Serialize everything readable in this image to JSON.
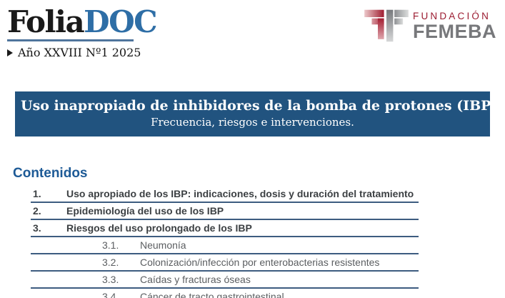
{
  "masthead": {
    "logo": {
      "part1": "Folia",
      "part2": "DOC"
    },
    "edition": "Año XXVIII Nº1 2025"
  },
  "partner_logo": {
    "line1": "FUNDACIÓN",
    "line2": "FEMEBA"
  },
  "banner": {
    "title": "Uso inapropiado de inhibidores de la bomba de protones (IBP)",
    "subtitle": "Frecuencia, riesgos e intervenciones."
  },
  "contents": {
    "heading": "Contenidos",
    "items": [
      {
        "number": "1.",
        "label": "Uso apropiado de los IBP: indicaciones, dosis y duración del tratamiento",
        "level": 1
      },
      {
        "number": "2.",
        "label": "Epidemiología del uso de los IBP",
        "level": 1
      },
      {
        "number": "3.",
        "label": "Riesgos del uso prolongado de los IBP",
        "level": 1
      },
      {
        "number": "3.1.",
        "label": "Neumonía",
        "level": 2
      },
      {
        "number": "3.2.",
        "label": "Colonización/infección por enterobacterias resistentes",
        "level": 2
      },
      {
        "number": "3.3.",
        "label": "Caídas y fracturas óseas",
        "level": 2
      },
      {
        "number": "3.4.",
        "label": "Cáncer de tracto gastrointestinal",
        "level": 2
      }
    ]
  },
  "colors": {
    "ink": "#1a1a1a",
    "logo-doc-blue": "#2e6ea6",
    "logo-rule": "#4f759c",
    "banner-bg": "#21537f",
    "heading-blue": "#1d5a96",
    "toc-line": "#3d5c80",
    "toc-main-text": "#3c4043",
    "toc-sub-text": "#5b5e61",
    "femeba-red": "#9b1b30",
    "femeba-gray": "#77787b"
  }
}
